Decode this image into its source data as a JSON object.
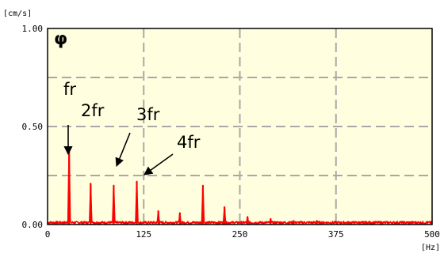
{
  "chart_data": {
    "type": "line",
    "ylabel": "[cm/s]",
    "xlabel": "[Hz]",
    "xlim": [
      0,
      500
    ],
    "ylim": [
      0,
      1.0
    ],
    "x_ticks": [
      0,
      125,
      250,
      375,
      500
    ],
    "x_tick_labels": [
      "0",
      "125",
      "250",
      "375",
      "500"
    ],
    "y_ticks": [
      0,
      0.5,
      1.0
    ],
    "y_tick_labels": [
      "0.00",
      "0.50",
      "1.00"
    ],
    "grid": true,
    "corner_symbol": "φ",
    "series": [
      {
        "color": "#ff0000",
        "peaks": [
          {
            "x": 28,
            "y": 0.39
          },
          {
            "x": 56,
            "y": 0.21
          },
          {
            "x": 86,
            "y": 0.2
          },
          {
            "x": 116,
            "y": 0.22
          },
          {
            "x": 144,
            "y": 0.07
          },
          {
            "x": 172,
            "y": 0.06
          },
          {
            "x": 202,
            "y": 0.2
          },
          {
            "x": 230,
            "y": 0.09
          },
          {
            "x": 260,
            "y": 0.04
          },
          {
            "x": 290,
            "y": 0.03
          },
          {
            "x": 320,
            "y": 0.02
          },
          {
            "x": 350,
            "y": 0.02
          },
          {
            "x": 410,
            "y": 0.015
          },
          {
            "x": 470,
            "y": 0.01
          }
        ]
      }
    ],
    "annotations": [
      {
        "text": "fr"
      },
      {
        "text": "2fr"
      },
      {
        "text": "3fr"
      },
      {
        "text": "4fr"
      }
    ],
    "colors": {
      "plot_background": "#ffffe0",
      "grid": "#a8a8a8",
      "frame": "#000000",
      "series": "#ff0000"
    }
  }
}
